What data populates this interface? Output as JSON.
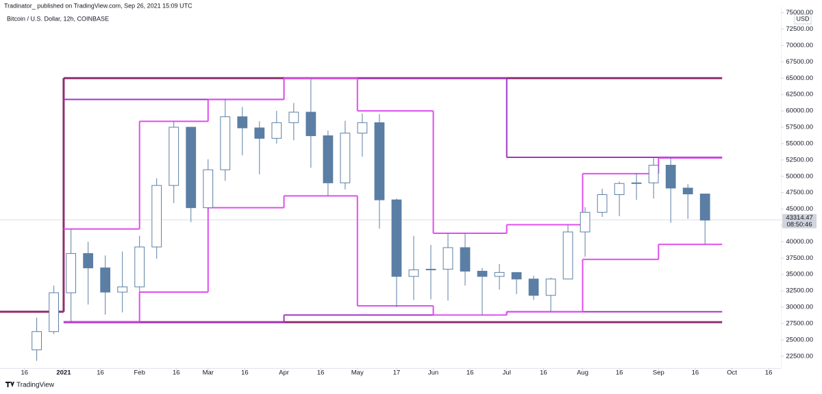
{
  "header": {
    "publisher": "Tradinator_ published on TradingView.com, Sep 26, 2021 15:09 UTC",
    "footer": "TradingView"
  },
  "chart_data": {
    "type": "candlestick",
    "title": "Bitcoin / U.S. Dollar, 12h, COINBASE",
    "currency": "USD",
    "color": "#5b7ea4",
    "x": [
      "2020-12-21",
      "2020-12-28",
      "2021-01-04",
      "2021-01-11",
      "2021-01-18",
      "2021-01-25",
      "2021-02-01",
      "2021-02-08",
      "2021-02-15",
      "2021-02-22",
      "2021-03-01",
      "2021-03-08",
      "2021-03-15",
      "2021-03-22",
      "2021-03-29",
      "2021-04-05",
      "2021-04-12",
      "2021-04-19",
      "2021-04-26",
      "2021-05-03",
      "2021-05-10",
      "2021-05-17",
      "2021-05-24",
      "2021-05-31",
      "2021-06-07",
      "2021-06-14",
      "2021-06-21",
      "2021-06-28",
      "2021-07-05",
      "2021-07-12",
      "2021-07-19",
      "2021-07-26",
      "2021-08-02",
      "2021-08-09",
      "2021-08-16",
      "2021-08-23",
      "2021-08-30",
      "2021-09-06",
      "2021-09-13",
      "2021-09-20"
    ],
    "open": [
      23480,
      26270,
      32200,
      38200,
      36000,
      32300,
      33100,
      39200,
      48600,
      57500,
      45200,
      51000,
      59100,
      57400,
      55800,
      58200,
      59800,
      56200,
      49000,
      56600,
      58200,
      46400,
      34700,
      35700,
      35800,
      39100,
      35500,
      34700,
      35300,
      34300,
      31800,
      34300,
      41500,
      44500,
      47200,
      48900,
      49000,
      51700,
      48200,
      47300
    ],
    "high": [
      28400,
      33300,
      41950,
      40000,
      37900,
      38500,
      40900,
      49700,
      58400,
      57500,
      52600,
      61800,
      60600,
      58400,
      60000,
      61200,
      65000,
      57000,
      58500,
      59600,
      59500,
      46600,
      40900,
      39500,
      41300,
      41300,
      36000,
      36600,
      35100,
      34800,
      34500,
      42500,
      45300,
      48100,
      49200,
      50500,
      52900,
      52800,
      48800,
      47300
    ],
    "low": [
      21800,
      25900,
      27700,
      30400,
      28850,
      29200,
      32300,
      37400,
      45900,
      43000,
      44900,
      49300,
      53200,
      50300,
      55000,
      55500,
      51300,
      47000,
      48000,
      53000,
      42000,
      30000,
      31100,
      31200,
      31000,
      33300,
      28800,
      32700,
      32000,
      31100,
      29300,
      34300,
      37700,
      43800,
      43900,
      46400,
      46600,
      42900,
      43500,
      39600
    ],
    "close": [
      26270,
      32200,
      38200,
      36000,
      32300,
      33100,
      39200,
      48600,
      57500,
      45200,
      51000,
      59100,
      57400,
      55800,
      58200,
      59800,
      56200,
      49000,
      56600,
      58200,
      46400,
      34700,
      35700,
      35800,
      39100,
      35500,
      34700,
      35300,
      34300,
      31800,
      34300,
      41500,
      44500,
      47200,
      48900,
      49000,
      51700,
      48200,
      47300,
      43300
    ],
    "last_price": 43314.47,
    "countdown": "08:50:46",
    "xlim": [
      "2020-12-06",
      "2021-10-21"
    ],
    "ylim": [
      20700,
      75900
    ],
    "xticks": [
      {
        "value": "2020-12-16",
        "label": "16"
      },
      {
        "value": "2021-01-01",
        "label": "2021"
      },
      {
        "value": "2021-01-16",
        "label": "16"
      },
      {
        "value": "2021-02-01",
        "label": "Feb"
      },
      {
        "value": "2021-02-16",
        "label": "16"
      },
      {
        "value": "2021-03-01",
        "label": "Mar"
      },
      {
        "value": "2021-03-16",
        "label": "16"
      },
      {
        "value": "2021-04-01",
        "label": "Apr"
      },
      {
        "value": "2021-04-16",
        "label": "16"
      },
      {
        "value": "2021-05-01",
        "label": "May"
      },
      {
        "value": "2021-05-17",
        "label": "17"
      },
      {
        "value": "2021-06-01",
        "label": "Jun"
      },
      {
        "value": "2021-06-16",
        "label": "16"
      },
      {
        "value": "2021-07-01",
        "label": "Jul"
      },
      {
        "value": "2021-07-16",
        "label": "16"
      },
      {
        "value": "2021-08-01",
        "label": "Aug"
      },
      {
        "value": "2021-08-16",
        "label": "16"
      },
      {
        "value": "2021-09-01",
        "label": "Sep"
      },
      {
        "value": "2021-09-16",
        "label": "16"
      },
      {
        "value": "2021-10-01",
        "label": "Oct"
      },
      {
        "value": "2021-10-16",
        "label": "16"
      }
    ],
    "yticks": [
      {
        "value": 22500,
        "label": "22500.00"
      },
      {
        "value": 25000,
        "label": "25000.00"
      },
      {
        "value": 27500,
        "label": "27500.00"
      },
      {
        "value": 30000,
        "label": "30000.00"
      },
      {
        "value": 32500,
        "label": "32500.00"
      },
      {
        "value": 35000,
        "label": "35000.00"
      },
      {
        "value": 37500,
        "label": "37500.00"
      },
      {
        "value": 40000,
        "label": "40000.00"
      },
      {
        "value": 42500,
        "label": "42500.00"
      },
      {
        "value": 45000,
        "label": "45000.00"
      },
      {
        "value": 47500,
        "label": "47500.00"
      },
      {
        "value": 50000,
        "label": "50000.00"
      },
      {
        "value": 52500,
        "label": "52500.00"
      },
      {
        "value": 55000,
        "label": "55000.00"
      },
      {
        "value": 57500,
        "label": "57500.00"
      },
      {
        "value": 60000,
        "label": "60000.00"
      },
      {
        "value": 62500,
        "label": "62500.00"
      },
      {
        "value": 65000,
        "label": "65000.00"
      },
      {
        "value": 67500,
        "label": "67500.00"
      },
      {
        "value": 70000,
        "label": "70000.00"
      },
      {
        "value": 72500,
        "label": "72500.00"
      },
      {
        "value": 75000,
        "label": "75000.00"
      }
    ],
    "levels": [
      {
        "color": "#8e2d6e",
        "x": [
          "2020-12-06",
          "2021-01-01",
          "2021-09-27"
        ],
        "values": [
          29300,
          65000,
          65000
        ]
      },
      {
        "color": "#8e2d6e",
        "x": [
          "2021-01-01",
          "2021-09-27"
        ],
        "values": [
          27700,
          27700
        ]
      },
      {
        "color": "#a234c4",
        "x": [
          "2021-01-01",
          "2021-04-01",
          "2021-07-01",
          "2021-09-27"
        ],
        "values": [
          61750,
          65000,
          52900,
          52900
        ]
      },
      {
        "color": "#a234c4",
        "x": [
          "2021-01-01",
          "2021-04-01",
          "2021-07-01",
          "2021-09-27"
        ],
        "values": [
          27700,
          28800,
          29300,
          29300
        ]
      },
      {
        "color": "#e04cf0",
        "x": [
          "2021-01-01",
          "2021-02-01",
          "2021-03-01",
          "2021-04-01",
          "2021-05-01",
          "2021-06-01",
          "2021-07-01",
          "2021-08-01",
          "2021-09-01",
          "2021-09-27"
        ],
        "values": [
          41950,
          58400,
          61750,
          65000,
          60000,
          41300,
          42600,
          50400,
          52800,
          52800
        ]
      },
      {
        "color": "#e04cf0",
        "x": [
          "2021-01-01",
          "2021-02-01",
          "2021-03-01",
          "2021-04-01",
          "2021-05-01",
          "2021-06-01",
          "2021-07-01",
          "2021-08-01",
          "2021-09-01",
          "2021-09-27"
        ],
        "values": [
          27800,
          32300,
          45200,
          47000,
          30200,
          28800,
          29300,
          37300,
          39600,
          39600
        ]
      }
    ]
  }
}
